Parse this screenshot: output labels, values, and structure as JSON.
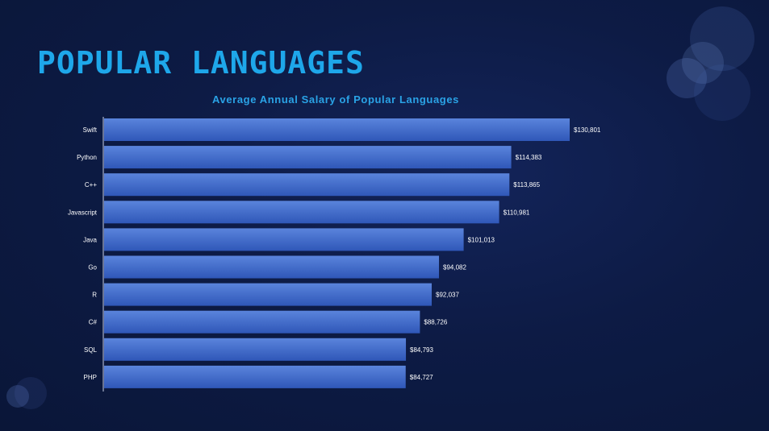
{
  "slide": {
    "title": "POPULAR LANGUAGES"
  },
  "chart_data": {
    "type": "bar",
    "orientation": "horizontal",
    "title": "Average Annual Salary of Popular Languages",
    "categories": [
      "Swift",
      "Python",
      "C++",
      "Javascript",
      "Java",
      "Go",
      "R",
      "C#",
      "SQL",
      "PHP"
    ],
    "values": [
      130801,
      114383,
      113865,
      110981,
      101013,
      94082,
      92037,
      88726,
      84793,
      84727
    ],
    "value_labels": [
      "$130,801",
      "$114,383",
      "$113,865",
      "$110,981",
      "$101,013",
      "$94,082",
      "$92,037",
      "$88,726",
      "$84,793",
      "$84,727"
    ],
    "xlim": [
      0,
      130801
    ],
    "grid": false,
    "legend": "none",
    "colors": {
      "bar_top": "#5a84dc",
      "bar_bottom": "#2f57b8",
      "title": "#1ea7ea",
      "chart_title": "#2aa3e6",
      "text": "#ffffff"
    }
  }
}
